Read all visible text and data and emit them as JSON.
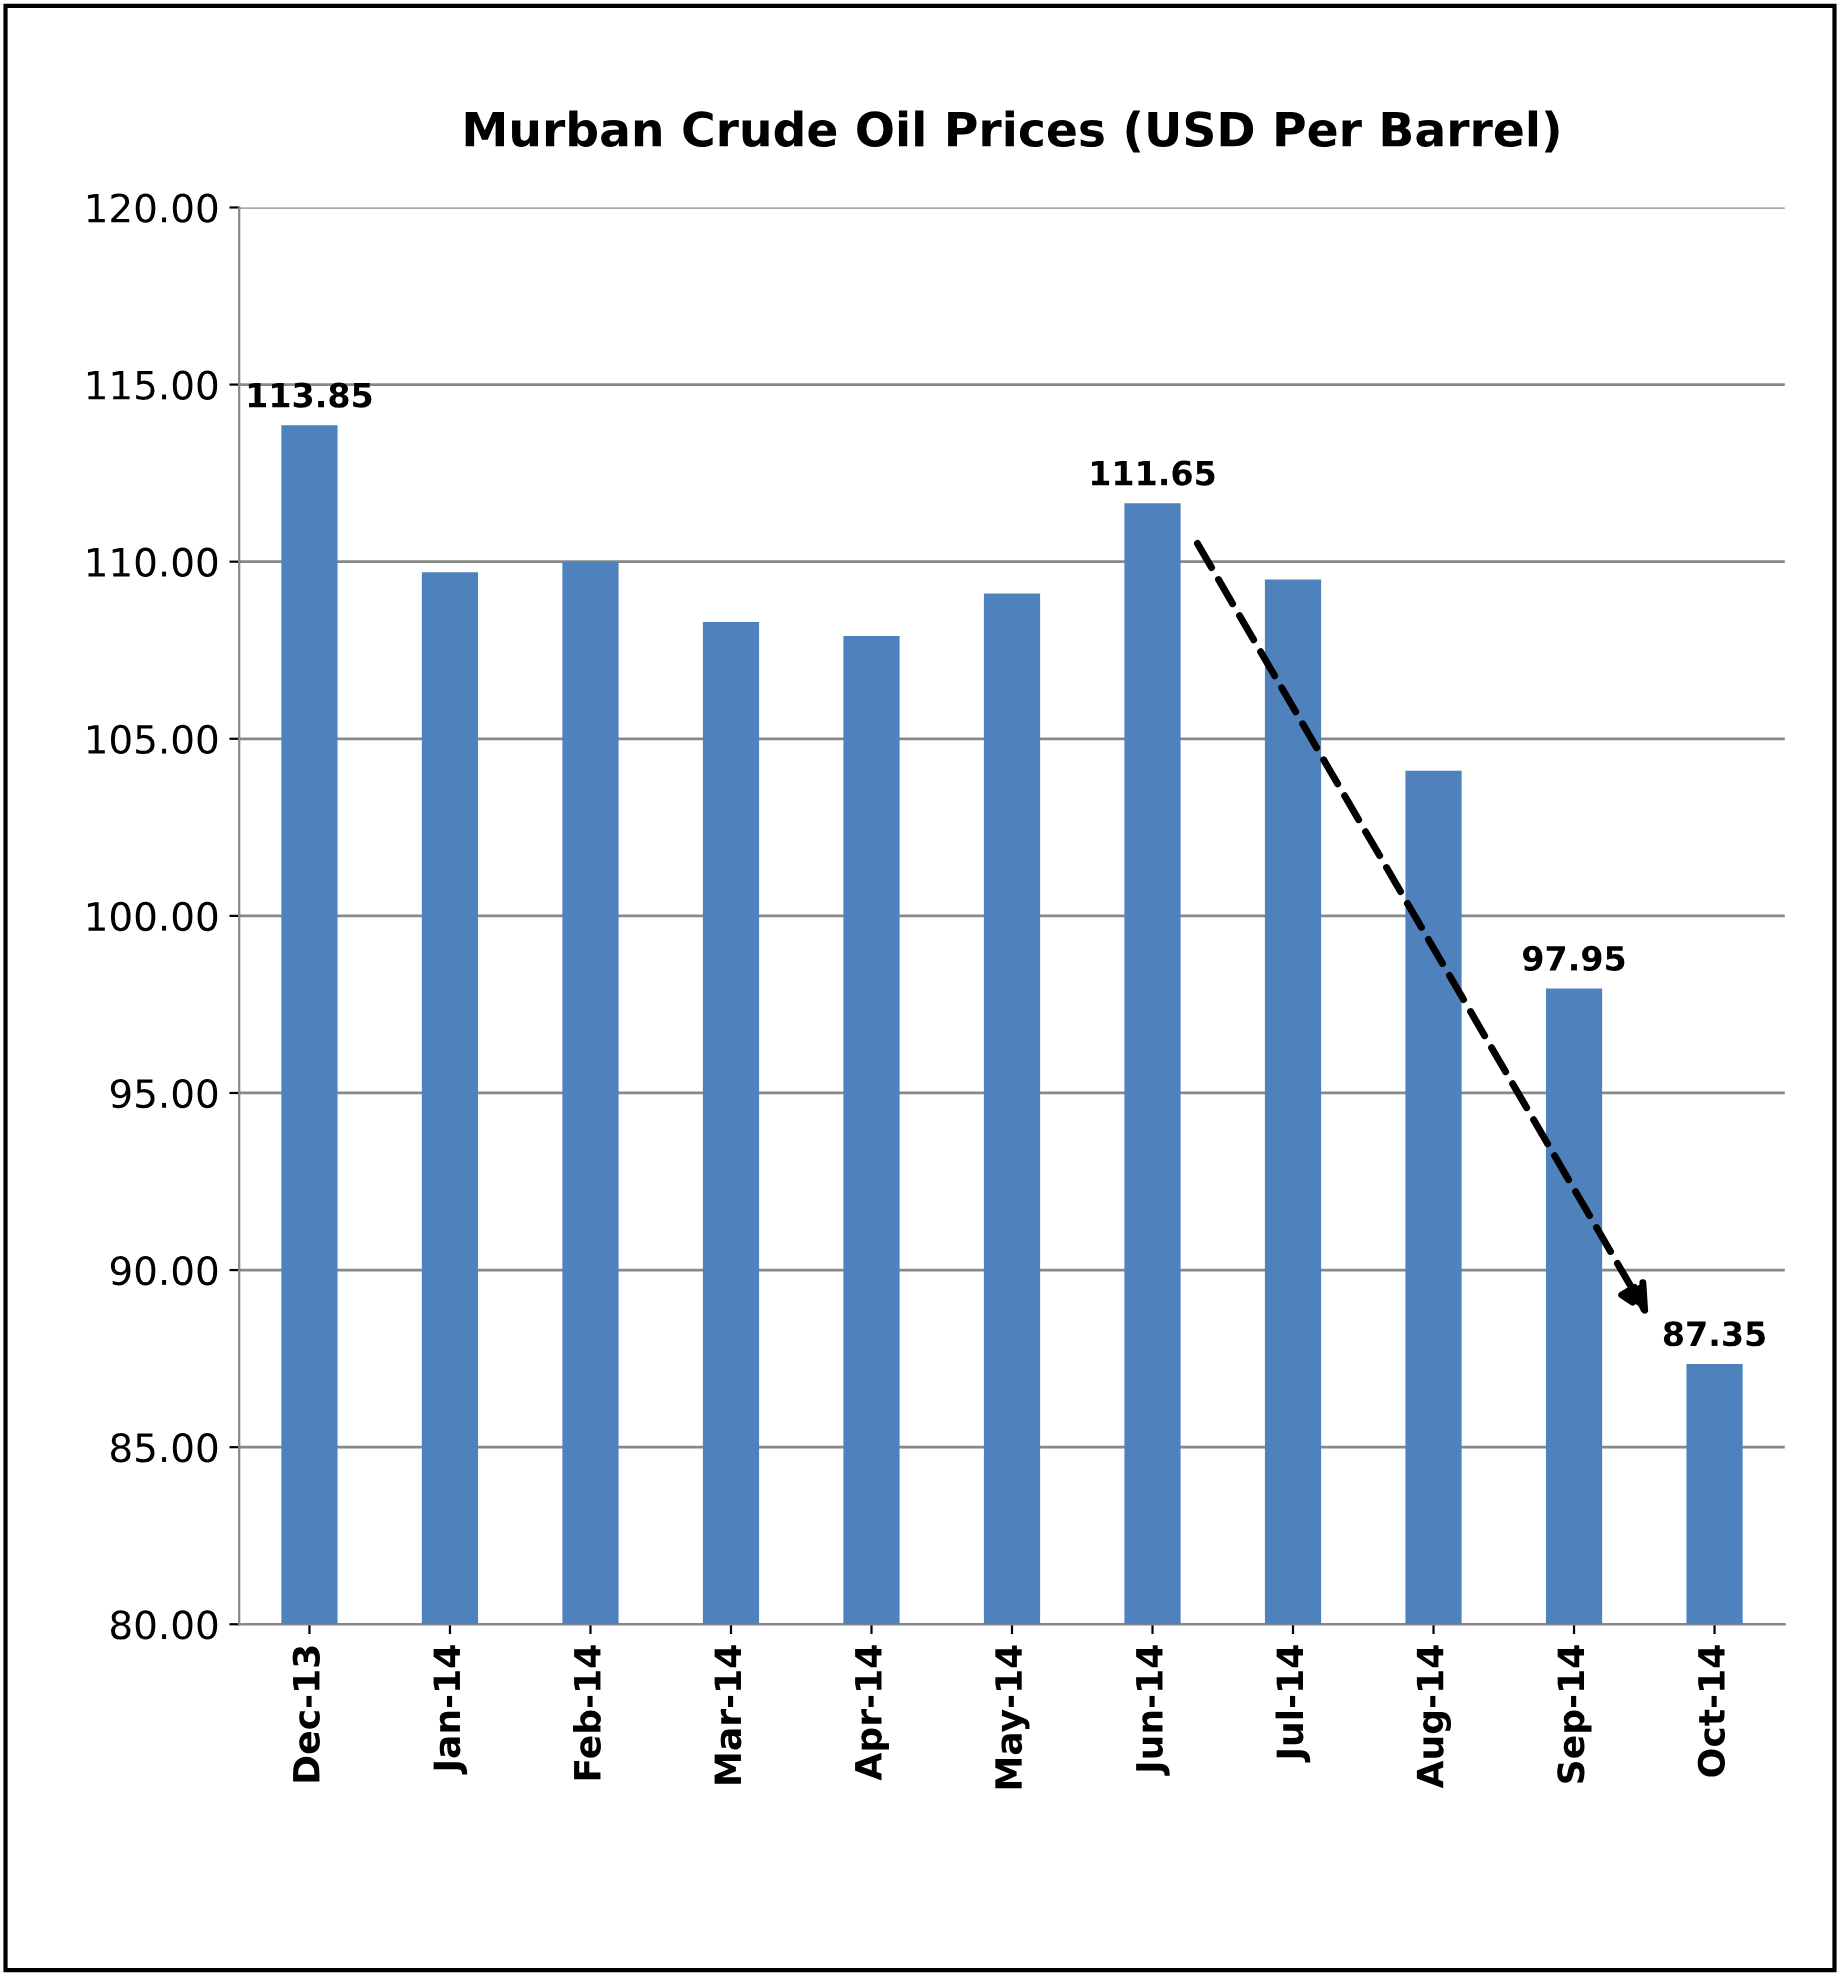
{
  "chart_data": {
    "type": "bar",
    "title": "Murban Crude Oil Prices (USD Per Barrel)",
    "categories": [
      "Dec-13",
      "Jan-14",
      "Feb-14",
      "Mar-14",
      "Apr-14",
      "May-14",
      "Jun-14",
      "Jul-14",
      "Aug-14",
      "Sep-14",
      "Oct-14"
    ],
    "values": [
      113.85,
      109.7,
      110.0,
      108.3,
      107.9,
      109.1,
      111.65,
      109.5,
      104.1,
      97.95,
      87.35
    ],
    "value_labels": [
      "113.85",
      null,
      null,
      null,
      null,
      null,
      "111.65",
      null,
      null,
      "97.95",
      "87.35"
    ],
    "color": "#4f81bd",
    "ylim": [
      80,
      120
    ],
    "yticks": [
      {
        "value": 80,
        "label": "80.00"
      },
      {
        "value": 85,
        "label": "85.00"
      },
      {
        "value": 90,
        "label": "90.00"
      },
      {
        "value": 95,
        "label": "95.00"
      },
      {
        "value": 100,
        "label": "100.00"
      },
      {
        "value": 105,
        "label": "105.00"
      },
      {
        "value": 110,
        "label": "110.00"
      },
      {
        "value": 115,
        "label": "115.00"
      },
      {
        "value": 120,
        "label": "120.00"
      }
    ],
    "grid": "y"
  }
}
